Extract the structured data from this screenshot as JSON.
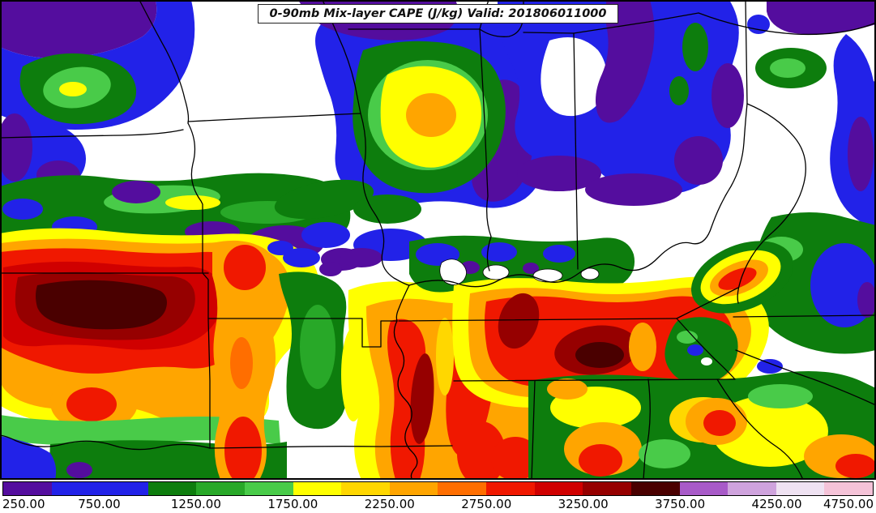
{
  "title": "0-90mb Mix-layer CAPE (J/kg) Valid: 201806011000",
  "colorbar": {
    "units": "J/kg",
    "min": 250,
    "max": 4750,
    "interval": 250,
    "tick_labels": [
      "250.00",
      "750.00",
      "1250.00",
      "1750.00",
      "2250.00",
      "2750.00",
      "3250.00",
      "3750.00",
      "4250.00",
      "4750.00"
    ],
    "segments": [
      {
        "from": 250,
        "to": 500,
        "color": "#540d9e"
      },
      {
        "from": 500,
        "to": 750,
        "color": "#2222e8"
      },
      {
        "from": 750,
        "to": 1000,
        "color": "#2222e8"
      },
      {
        "from": 1000,
        "to": 1250,
        "color": "#0d7d0d"
      },
      {
        "from": 1250,
        "to": 1500,
        "color": "#28a828"
      },
      {
        "from": 1500,
        "to": 1750,
        "color": "#49cb49"
      },
      {
        "from": 1750,
        "to": 2000,
        "color": "#ffff00"
      },
      {
        "from": 2000,
        "to": 2250,
        "color": "#ffd700"
      },
      {
        "from": 2250,
        "to": 2500,
        "color": "#ffa500"
      },
      {
        "from": 2500,
        "to": 2750,
        "color": "#ff6e00"
      },
      {
        "from": 2750,
        "to": 3000,
        "color": "#f01800"
      },
      {
        "from": 3000,
        "to": 3250,
        "color": "#d00000"
      },
      {
        "from": 3250,
        "to": 3500,
        "color": "#960000"
      },
      {
        "from": 3500,
        "to": 3750,
        "color": "#4a0000"
      },
      {
        "from": 3750,
        "to": 4000,
        "color": "#a85ac8"
      },
      {
        "from": 4000,
        "to": 4250,
        "color": "#cfa3dd"
      },
      {
        "from": 4250,
        "to": 4500,
        "color": "#efe2f2"
      },
      {
        "from": 4500,
        "to": 4750,
        "color": "#f5c3d8"
      }
    ]
  },
  "chart_data": {
    "type": "heatmap",
    "title": "0-90mb Mix-layer CAPE (J/kg) Valid: 201806011000",
    "variable": "0-90mb mixed-layer CAPE",
    "units": "J/kg",
    "valid_time": "201806011000",
    "map_region": "central and eastern United States with state borders and rivers",
    "color_levels": [
      250,
      500,
      750,
      1000,
      1250,
      1500,
      1750,
      2000,
      2250,
      2500,
      2750,
      3000,
      3250,
      3500,
      3750,
      4000,
      4250,
      4500,
      4750
    ],
    "colors": [
      "#540d9e",
      "#2222e8",
      "#2222e8",
      "#0d7d0d",
      "#28a828",
      "#49cb49",
      "#ffff00",
      "#ffd700",
      "#ffa500",
      "#ff6e00",
      "#f01800",
      "#d00000",
      "#960000",
      "#4a0000",
      "#a85ac8",
      "#cfa3dd",
      "#efe2f2",
      "#f5c3d8"
    ],
    "tick_values": [
      250,
      750,
      1250,
      1750,
      2250,
      2750,
      3250,
      3750,
      4250,
      4750
    ],
    "legend_position": "bottom horizontal colorbar",
    "features": [
      {
        "area": "southwest quadrant (Kansas/Oklahoma)",
        "cape_range_jkg": [
          2750,
          3750
        ],
        "note": "strongest maximum; broad dark-red core exceeding 3500 J/kg"
      },
      {
        "area": "central Illinois",
        "cape_range_jkg": [
          1750,
          2500
        ],
        "note": "isolated bullseye of yellow/orange ringed by green, blue and purple"
      },
      {
        "area": "Tennessee / Kentucky region",
        "cape_range_jkg": [
          2250,
          3750
        ],
        "note": "large red area with embedded maroon cores"
      },
      {
        "area": "lower Mississippi valley (Arkansas/Mississippi)",
        "cape_range_jkg": [
          2250,
          3250
        ],
        "note": "north-south oriented red streaks within orange"
      },
      {
        "area": "Ohio valley / Great Lakes (upper right)",
        "cape_range_jkg": [
          250,
          1000
        ],
        "note": "mostly blue/purple with white areas below 250 J/kg"
      },
      {
        "area": "southeast (Alabama/Georgia/Carolinas)",
        "cape_range_jkg": [
          1000,
          3000
        ],
        "note": "mottled green and yellow with orange-red cores"
      },
      {
        "area": "upper left (Nebraska/Iowa)",
        "cape_range_jkg": [
          250,
          1750
        ],
        "note": "purple/blue band with small green-yellow patch; white below 250"
      }
    ]
  }
}
